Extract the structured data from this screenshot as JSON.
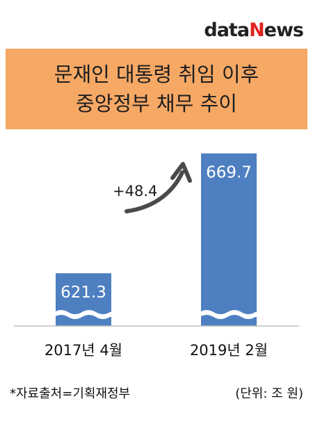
{
  "brand": {
    "logo_n": "N",
    "logo_text_a": "data",
    "logo_text_b": "ews"
  },
  "title": {
    "line1": "문재인 대통령 취임 이후",
    "line2": "중앙정부 채무 추이"
  },
  "chart_data": {
    "type": "bar",
    "categories": [
      "2017년 4월",
      "2019년 2월"
    ],
    "values": [
      621.3,
      669.7
    ],
    "value_labels": [
      "621.3",
      "669.7"
    ],
    "annotation": "+48.4",
    "axis_break": true,
    "bar_color": "#4e7fc1"
  },
  "footer": {
    "source": "*자료출처=기획재정부",
    "unit": "(단위: 조 원)"
  }
}
